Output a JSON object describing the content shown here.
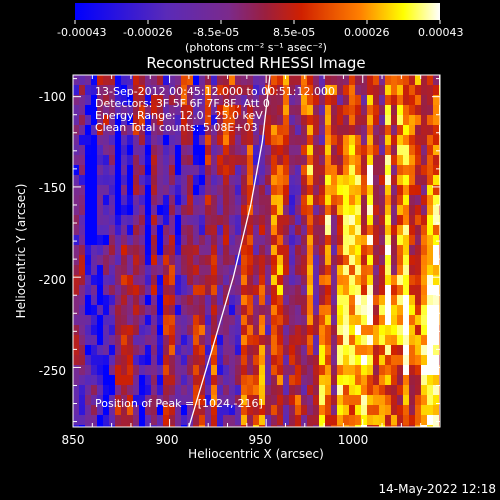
{
  "colorbar": {
    "tick_labels": [
      "-0.00043",
      "-0.00026",
      "-8.5e-05",
      "8.5e-05",
      "0.00026",
      "0.00043"
    ],
    "units_text": "(photons cm⁻² s⁻¹ asec⁻²)",
    "min": -0.00043,
    "max": 0.00043
  },
  "annotations": {
    "time_range": "13-Sep-2012 00:45:12.000 to 00:51:12.000",
    "detectors": "Detectors: 3F 5F 6F 7F 8F, Att 0",
    "energy": "Energy Range: 12.0 - 25.0 keV",
    "clean": "Clean     Total counts: 5.08E+03",
    "peak": "Position of Peak = [1024,-216]"
  },
  "footer": {
    "timestamp": "14-May-2022 12:18"
  },
  "chart_data": {
    "type": "heatmap",
    "title": "Reconstructed RHESSI Image",
    "xlabel": "Heliocentric X (arcsec)",
    "ylabel": "Heliocentric Y (arcsec)",
    "xlim": [
      850,
      1040
    ],
    "ylim": [
      -283,
      -88
    ],
    "x_ticks": [
      850,
      900,
      950,
      1000
    ],
    "x_tick_labels": [
      "850",
      "900",
      "950",
      "1000"
    ],
    "y_ticks": [
      -100,
      -150,
      -200,
      -250
    ],
    "y_tick_labels": [
      "-100",
      "-150",
      "-200",
      "-250"
    ],
    "peak_position": [
      1024,
      -216
    ],
    "limb_curve": [
      [
        910,
        -283
      ],
      [
        922,
        -240
      ],
      [
        933,
        -200
      ],
      [
        942,
        -160
      ],
      [
        948,
        -125
      ],
      [
        952,
        -88
      ]
    ],
    "colormap": [
      "#0000ff",
      "#5a2ab8",
      "#7b2a8c",
      "#9a1f40",
      "#d02000",
      "#ff7f00",
      "#ffff00",
      "#ffffff"
    ],
    "grid": false
  }
}
